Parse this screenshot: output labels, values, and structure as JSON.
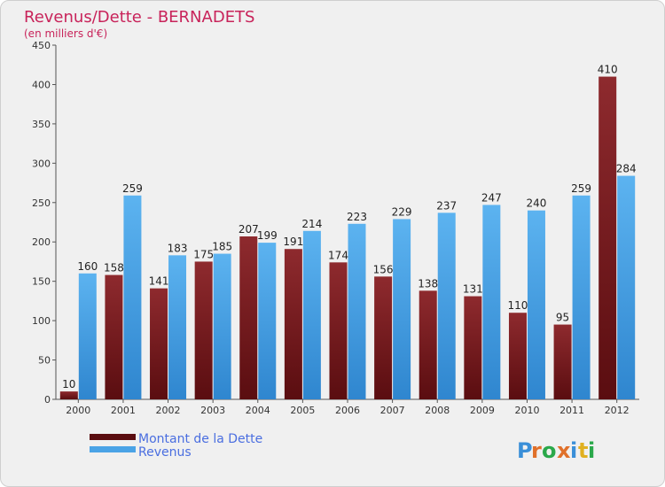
{
  "chart_data": {
    "type": "bar",
    "title": "Revenus/Dette - BERNADETS",
    "subtitle": "(en milliers d'€)",
    "categories": [
      "2000",
      "2001",
      "2002",
      "2003",
      "2004",
      "2005",
      "2006",
      "2007",
      "2008",
      "2009",
      "2010",
      "2011",
      "2012"
    ],
    "series": [
      {
        "name": "Montant de la Dette",
        "color": "#7a1a1e",
        "values": [
          10,
          158,
          141,
          175,
          207,
          191,
          174,
          156,
          138,
          131,
          110,
          95,
          410
        ]
      },
      {
        "name": "Revenus",
        "color": "#4aa3e6",
        "values": [
          160,
          259,
          183,
          185,
          199,
          214,
          223,
          229,
          237,
          247,
          240,
          259,
          284
        ]
      }
    ],
    "ylim": [
      0,
      450
    ],
    "yticks": [
      0,
      50,
      100,
      150,
      200,
      250,
      300,
      350,
      400,
      450
    ],
    "grid": false,
    "legend_position": "bottom-left"
  },
  "branding": {
    "logo_text": "Proxiti"
  }
}
